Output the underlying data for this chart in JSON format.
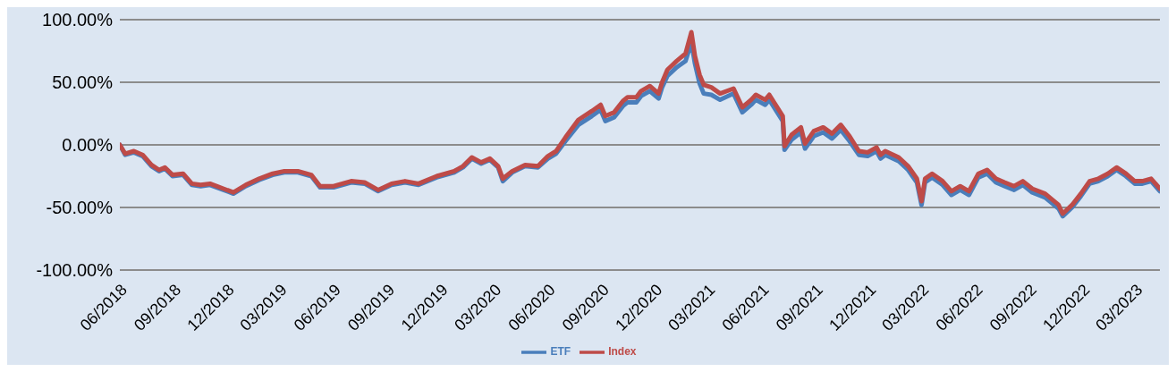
{
  "chart_data": {
    "type": "line",
    "x": [
      "2018-06-01",
      "2018-06-10",
      "2018-06-25",
      "2018-07-10",
      "2018-07-25",
      "2018-08-07",
      "2018-08-17",
      "2018-08-30",
      "2018-09-17",
      "2018-10-02",
      "2018-10-17",
      "2018-11-02",
      "2018-11-25",
      "2018-12-12",
      "2019-01-02",
      "2019-01-25",
      "2019-02-17",
      "2019-03-09",
      "2019-04-01",
      "2019-04-24",
      "2019-05-09",
      "2019-06-01",
      "2019-07-01",
      "2019-07-24",
      "2019-08-16",
      "2019-09-08",
      "2019-10-01",
      "2019-10-24",
      "2019-11-24",
      "2019-12-24",
      "2020-01-08",
      "2020-01-23",
      "2020-02-08",
      "2020-02-23",
      "2020-03-08",
      "2020-03-16",
      "2020-04-01",
      "2020-04-23",
      "2020-05-15",
      "2020-06-01",
      "2020-06-15",
      "2020-07-01",
      "2020-07-23",
      "2020-08-15",
      "2020-08-30",
      "2020-09-07",
      "2020-09-22",
      "2020-10-07",
      "2020-10-15",
      "2020-10-30",
      "2020-11-07",
      "2020-11-22",
      "2020-12-07",
      "2020-12-13",
      "2020-12-22",
      "2021-01-07",
      "2021-01-22",
      "2021-02-01",
      "2021-02-07",
      "2021-02-15",
      "2021-02-22",
      "2021-03-07",
      "2021-03-22",
      "2021-04-14",
      "2021-04-29",
      "2021-05-14",
      "2021-05-22",
      "2021-06-07",
      "2021-06-14",
      "2021-07-07",
      "2021-07-10",
      "2021-07-22",
      "2021-08-07",
      "2021-08-14",
      "2021-08-29",
      "2021-09-14",
      "2021-09-29",
      "2021-10-14",
      "2021-10-29",
      "2021-11-14",
      "2021-11-29",
      "2021-12-14",
      "2021-12-21",
      "2021-12-29",
      "2022-01-21",
      "2022-02-06",
      "2022-02-21",
      "2022-03-01",
      "2022-03-07",
      "2022-03-19",
      "2022-04-06",
      "2022-04-21",
      "2022-05-06",
      "2022-05-21",
      "2022-06-06",
      "2022-06-21",
      "2022-07-06",
      "2022-07-21",
      "2022-08-06",
      "2022-08-21",
      "2022-09-06",
      "2022-09-28",
      "2022-10-21",
      "2022-10-28",
      "2022-11-13",
      "2022-11-28",
      "2022-12-13",
      "2022-12-28",
      "2023-01-13",
      "2023-01-28",
      "2023-02-13",
      "2023-02-28",
      "2023-03-13",
      "2023-03-28",
      "2023-04-12"
    ],
    "series": [
      {
        "name": "ETF",
        "color": "#4a7ebb",
        "values": [
          0,
          -8,
          -6,
          -9,
          -17,
          -21,
          -19,
          -25,
          -24,
          -32,
          -33,
          -32,
          -36,
          -39,
          -33,
          -28,
          -24,
          -22,
          -22,
          -25,
          -34,
          -34,
          -30,
          -31,
          -37,
          -32,
          -30,
          -32,
          -26,
          -22,
          -18,
          -11,
          -15,
          -12,
          -18,
          -29,
          -22,
          -17,
          -18,
          -11,
          -7,
          3,
          16,
          23,
          28,
          19,
          22,
          31,
          34,
          34,
          39,
          43,
          37,
          46,
          55,
          62,
          67,
          82,
          65,
          49,
          41,
          40,
          36,
          41,
          26,
          32,
          36,
          32,
          36,
          19,
          -4,
          4,
          10,
          -3,
          7,
          10,
          5,
          12,
          3,
          -8,
          -9,
          -5,
          -11,
          -8,
          -13,
          -20,
          -30,
          -48,
          -30,
          -26,
          -32,
          -40,
          -36,
          -40,
          -26,
          -23,
          -30,
          -33,
          -36,
          -32,
          -38,
          -42,
          -51,
          -57,
          -50,
          -41,
          -31,
          -29,
          -25,
          -20,
          -25,
          -31,
          -31,
          -29,
          -37
        ]
      },
      {
        "name": "Index",
        "color": "#be4b48",
        "values": [
          0,
          -7,
          -5,
          -8,
          -16,
          -20,
          -18,
          -24,
          -23,
          -31,
          -32,
          -31,
          -35,
          -38,
          -32,
          -27,
          -23,
          -21,
          -21,
          -24,
          -33,
          -33,
          -29,
          -30,
          -36,
          -31,
          -29,
          -31,
          -25,
          -21,
          -17,
          -10,
          -14,
          -11,
          -17,
          -27,
          -21,
          -16,
          -17,
          -9,
          -5,
          6,
          20,
          27,
          32,
          23,
          26,
          35,
          38,
          38,
          43,
          47,
          41,
          50,
          60,
          67,
          73,
          90,
          71,
          56,
          48,
          46,
          41,
          45,
          30,
          36,
          40,
          36,
          40,
          23,
          -1,
          8,
          14,
          1,
          11,
          14,
          9,
          16,
          7,
          -5,
          -6,
          -2,
          -8,
          -5,
          -10,
          -17,
          -27,
          -45,
          -27,
          -23,
          -29,
          -37,
          -33,
          -37,
          -23,
          -20,
          -27,
          -30,
          -33,
          -29,
          -35,
          -39,
          -48,
          -55,
          -48,
          -39,
          -29,
          -27,
          -23,
          -18,
          -23,
          -29,
          -29,
          -27,
          -35
        ]
      }
    ],
    "xlim": [
      "2018-06-01",
      "2023-04-12"
    ],
    "xticks": [
      {
        "value": "2018-06-01",
        "label": "06/2018"
      },
      {
        "value": "2018-09-01",
        "label": "09/2018"
      },
      {
        "value": "2018-12-01",
        "label": "12/2018"
      },
      {
        "value": "2019-03-01",
        "label": "03/2019"
      },
      {
        "value": "2019-06-01",
        "label": "06/2019"
      },
      {
        "value": "2019-09-01",
        "label": "09/2019"
      },
      {
        "value": "2019-12-01",
        "label": "12/2019"
      },
      {
        "value": "2020-03-01",
        "label": "03/2020"
      },
      {
        "value": "2020-06-01",
        "label": "06/2020"
      },
      {
        "value": "2020-09-01",
        "label": "09/2020"
      },
      {
        "value": "2020-12-01",
        "label": "12/2020"
      },
      {
        "value": "2021-03-01",
        "label": "03/2021"
      },
      {
        "value": "2021-06-01",
        "label": "06/2021"
      },
      {
        "value": "2021-09-01",
        "label": "09/2021"
      },
      {
        "value": "2021-12-01",
        "label": "12/2021"
      },
      {
        "value": "2022-03-01",
        "label": "03/2022"
      },
      {
        "value": "2022-06-01",
        "label": "06/2022"
      },
      {
        "value": "2022-09-01",
        "label": "09/2022"
      },
      {
        "value": "2022-12-01",
        "label": "12/2022"
      },
      {
        "value": "2023-03-01",
        "label": "03/2023"
      }
    ],
    "ylim": [
      -100,
      100
    ],
    "yticks": [
      {
        "value": -100,
        "label": "-100.00%"
      },
      {
        "value": -50,
        "label": "-50.00%"
      },
      {
        "value": 0,
        "label": "0.00%"
      },
      {
        "value": 50,
        "label": "50.00%"
      },
      {
        "value": 100,
        "label": "100.00%"
      }
    ],
    "grid": "y",
    "legend": "bottom",
    "marker": "none",
    "line_style": "solid"
  }
}
